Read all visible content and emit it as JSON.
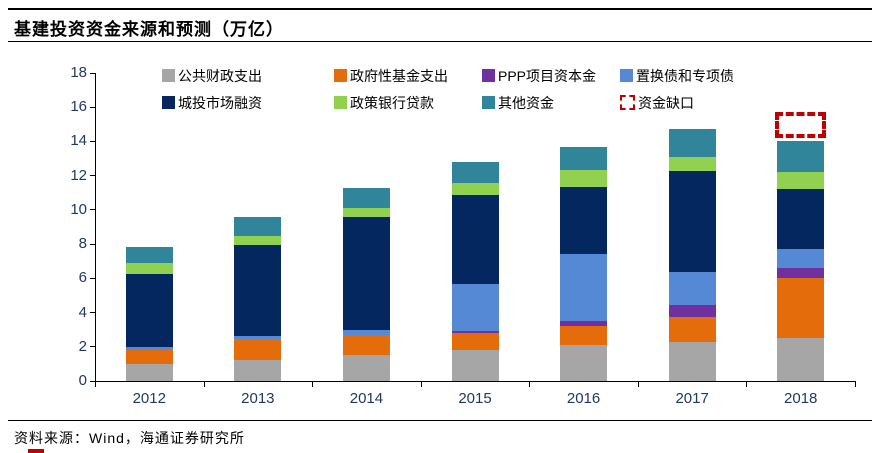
{
  "page": {
    "title": "基建投资资金来源和预测（万亿）",
    "source": "资料来源：Wind，海通证券研究所"
  },
  "colors": {
    "gray": "#A6A6A6",
    "orange": "#E46C0A",
    "purple": "#7030A0",
    "lightblue": "#5589D5",
    "navy": "#04275F",
    "green": "#92D050",
    "teal": "#31859B",
    "red": "#C00000",
    "axis_text": "#1F3864"
  },
  "legend": {
    "items": [
      {
        "label": "公共财政支出",
        "color_key": "gray",
        "swatch": "solid"
      },
      {
        "label": "政府性基金支出",
        "color_key": "orange",
        "swatch": "solid"
      },
      {
        "label": "PPP项目资本金",
        "color_key": "purple",
        "swatch": "solid"
      },
      {
        "label": "置换债和专项债",
        "color_key": "lightblue",
        "swatch": "solid"
      },
      {
        "label": "城投市场融资",
        "color_key": "navy",
        "swatch": "solid"
      },
      {
        "label": "政策银行贷款",
        "color_key": "green",
        "swatch": "solid"
      },
      {
        "label": "其他资金",
        "color_key": "teal",
        "swatch": "solid"
      },
      {
        "label": "资金缺口",
        "color_key": "red",
        "swatch": "dashed"
      }
    ]
  },
  "chart_data": {
    "type": "bar",
    "stacked": true,
    "title": "基建投资资金来源和预测（万亿）",
    "xlabel": "",
    "ylabel": "",
    "ylim": [
      0,
      18
    ],
    "ytick_step": 2,
    "grid": false,
    "legend_position": "top",
    "categories": [
      "2012",
      "2013",
      "2014",
      "2015",
      "2016",
      "2017",
      "2018"
    ],
    "series": [
      {
        "name": "公共财政支出",
        "color_key": "gray",
        "values": [
          1.0,
          1.2,
          1.5,
          1.8,
          2.1,
          2.3,
          2.5
        ]
      },
      {
        "name": "政府性基金支出",
        "color_key": "orange",
        "values": [
          0.8,
          1.25,
          1.2,
          1.0,
          1.1,
          1.45,
          3.5
        ]
      },
      {
        "name": "PPP项目资本金",
        "color_key": "purple",
        "values": [
          0,
          0,
          0,
          0.1,
          0.3,
          0.7,
          0.6
        ]
      },
      {
        "name": "置换债和专项债",
        "color_key": "lightblue",
        "values": [
          0.2,
          0.2,
          0.3,
          2.75,
          3.9,
          1.95,
          1.1
        ]
      },
      {
        "name": "城投市场融资",
        "color_key": "navy",
        "values": [
          4.25,
          5.3,
          6.6,
          5.2,
          3.95,
          5.9,
          3.5
        ]
      },
      {
        "name": "政策银行贷款",
        "color_key": "green",
        "values": [
          0.65,
          0.5,
          0.5,
          0.7,
          1.0,
          0.8,
          1.0
        ]
      },
      {
        "name": "其他资金",
        "color_key": "teal",
        "values": [
          0.95,
          1.15,
          1.2,
          1.25,
          1.35,
          1.6,
          1.8
        ]
      }
    ],
    "totals": [
      7.85,
      9.6,
      11.3,
      12.8,
      13.7,
      14.7,
      14.0
    ],
    "gap": {
      "name": "资金缺口",
      "category": "2018",
      "from": 14.2,
      "to": 15.7
    }
  }
}
